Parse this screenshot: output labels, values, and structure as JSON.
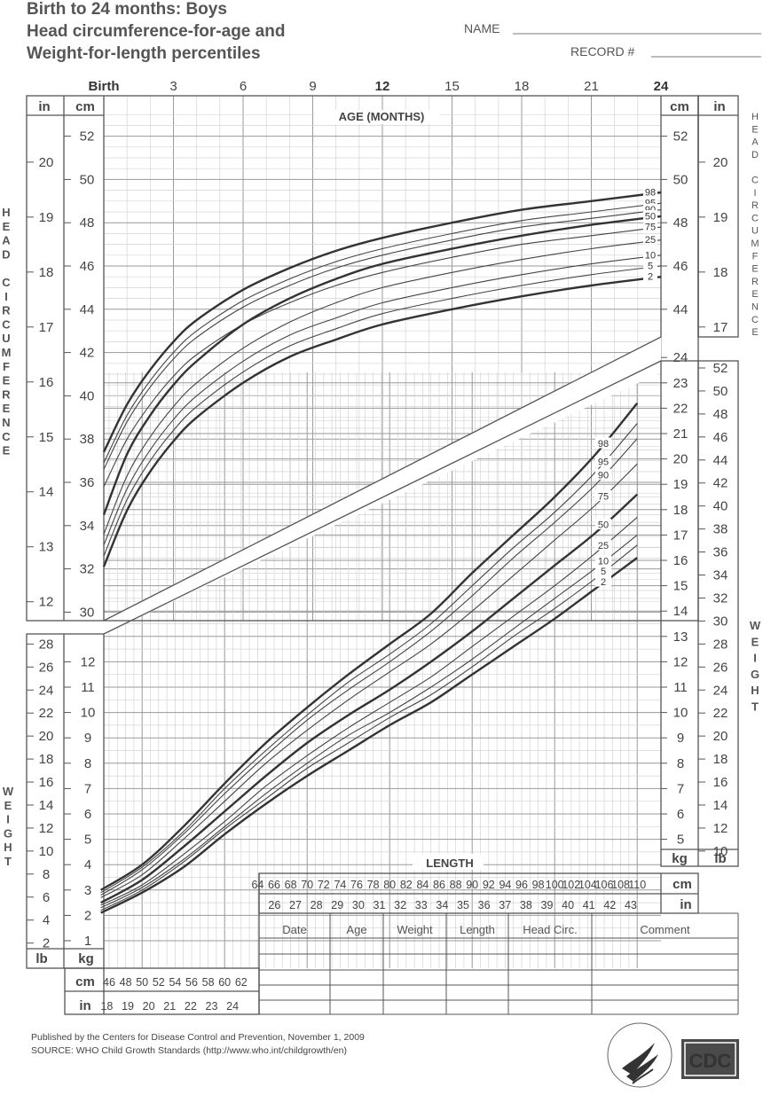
{
  "title": {
    "line1": "Birth to 24 months: Boys",
    "line2": "Head circumference-for-age and",
    "line3": "Weight-for-length percentiles"
  },
  "form": {
    "name_label": "NAME",
    "record_label": "RECORD #"
  },
  "age_axis": {
    "label": "AGE (MONTHS)",
    "ticks": [
      "Birth",
      "3",
      "6",
      "9",
      "12",
      "15",
      "18",
      "21",
      "24"
    ],
    "bold_ticks": [
      "Birth",
      "12",
      "24"
    ]
  },
  "head_axis": {
    "cm_label": "cm",
    "in_label": "in",
    "cm_ticks": [
      "52",
      "50",
      "48",
      "46",
      "44",
      "42",
      "40",
      "38",
      "36",
      "34",
      "32",
      "30"
    ],
    "in_ticks": [
      "20",
      "19",
      "18",
      "17",
      "16",
      "15",
      "14",
      "13",
      "12"
    ],
    "right_cm_ticks": [
      "52",
      "50",
      "48",
      "46",
      "44"
    ],
    "right_in_ticks": [
      "20",
      "19",
      "18",
      "17"
    ],
    "side_label": "HEAD CIRCUMFERENCE"
  },
  "weight_axis": {
    "kg_label": "kg",
    "lb_label": "lb",
    "left_kg_ticks": [
      "12",
      "11",
      "10",
      "9",
      "8",
      "7",
      "6",
      "5",
      "4",
      "3",
      "2",
      "1"
    ],
    "left_lb_ticks": [
      "28",
      "26",
      "24",
      "22",
      "20",
      "18",
      "16",
      "14",
      "12",
      "10",
      "8",
      "6",
      "4",
      "2"
    ],
    "right_kg_ticks": [
      "24",
      "23",
      "22",
      "21",
      "20",
      "19",
      "18",
      "17",
      "16",
      "15",
      "14",
      "13",
      "12",
      "11",
      "10",
      "9",
      "8",
      "7",
      "6",
      "5"
    ],
    "right_lb_ticks": [
      "52",
      "50",
      "48",
      "46",
      "44",
      "42",
      "40",
      "38",
      "36",
      "34",
      "32",
      "30",
      "28",
      "26",
      "24",
      "22",
      "20",
      "18",
      "16",
      "14",
      "12",
      "10"
    ],
    "side_label": "WEIGHT"
  },
  "length_axis": {
    "label": "LENGTH",
    "cm_label": "cm",
    "in_label": "in",
    "cm_ticks_left": [
      "46",
      "48",
      "50",
      "52",
      "54",
      "56",
      "58",
      "60",
      "62"
    ],
    "in_ticks_left": [
      "18",
      "19",
      "20",
      "21",
      "22",
      "23",
      "24"
    ],
    "cm_ticks_right": [
      "64",
      "66",
      "68",
      "70",
      "72",
      "74",
      "76",
      "78",
      "80",
      "82",
      "84",
      "86",
      "88",
      "90",
      "92",
      "94",
      "96",
      "98",
      "100",
      "102",
      "104",
      "106",
      "108",
      "110"
    ],
    "in_ticks_right": [
      "26",
      "27",
      "28",
      "29",
      "30",
      "31",
      "32",
      "33",
      "34",
      "35",
      "36",
      "37",
      "38",
      "39",
      "40",
      "41",
      "42",
      "43"
    ]
  },
  "percentile_labels": [
    "98",
    "95",
    "90",
    "75",
    "50",
    "25",
    "10",
    "5",
    "2"
  ],
  "record_table": {
    "columns": [
      "Date",
      "Age",
      "Weight",
      "Length",
      "Head Circ.",
      "Comment"
    ]
  },
  "footer": {
    "line1": "Published by the Centers for Disease Control and Prevention, November 1, 2009",
    "line2": "SOURCE:  WHO Child Growth Standards (http://www.who.int/childgrowth/en)"
  },
  "logos": {
    "hhs_seal_text": "DEPARTMENT OF HEALTH & HUMAN SERVICES USA",
    "cdc": "CDC"
  },
  "chart_data": [
    {
      "type": "line",
      "name": "Head circumference-for-age",
      "xlabel": "AGE (MONTHS)",
      "ylabel": "cm",
      "xlim": [
        0,
        24
      ],
      "ylim": [
        29,
        53
      ],
      "x": [
        0,
        1,
        2,
        3,
        4,
        6,
        8,
        10,
        12,
        15,
        18,
        21,
        24
      ],
      "series": [
        {
          "name": "98",
          "values": [
            37.4,
            39.6,
            41.2,
            42.5,
            43.5,
            44.9,
            45.9,
            46.7,
            47.3,
            48.0,
            48.6,
            49.0,
            49.4
          ]
        },
        {
          "name": "95",
          "values": [
            36.9,
            39.1,
            40.7,
            42.0,
            43.0,
            44.4,
            45.4,
            46.2,
            46.8,
            47.5,
            48.1,
            48.5,
            48.9
          ]
        },
        {
          "name": "90",
          "values": [
            36.6,
            38.8,
            40.4,
            41.7,
            42.7,
            44.1,
            45.1,
            45.9,
            46.5,
            47.2,
            47.8,
            48.2,
            48.6
          ]
        },
        {
          "name": "75",
          "values": [
            35.8,
            38.0,
            39.6,
            40.9,
            41.9,
            43.3,
            44.3,
            45.1,
            45.7,
            46.4,
            47.0,
            47.4,
            47.8
          ]
        },
        {
          "name": "50",
          "values": [
            34.5,
            37.3,
            39.1,
            40.5,
            41.6,
            43.3,
            44.5,
            45.4,
            46.1,
            46.8,
            47.4,
            47.9,
            48.3
          ]
        },
        {
          "name": "25",
          "values": [
            33.6,
            36.3,
            38.1,
            39.5,
            40.6,
            42.2,
            43.4,
            44.3,
            45.0,
            45.7,
            46.3,
            46.8,
            47.2
          ]
        },
        {
          "name": "10",
          "values": [
            33.1,
            35.7,
            37.5,
            38.9,
            40.0,
            41.6,
            42.8,
            43.6,
            44.3,
            45.0,
            45.6,
            46.1,
            46.5
          ]
        },
        {
          "name": "5",
          "values": [
            32.6,
            35.2,
            37.0,
            38.4,
            39.5,
            41.1,
            42.3,
            43.1,
            43.8,
            44.5,
            45.1,
            45.6,
            46.0
          ]
        },
        {
          "name": "2",
          "values": [
            32.1,
            34.7,
            36.5,
            37.9,
            39.0,
            40.6,
            41.8,
            42.6,
            43.3,
            44.0,
            44.6,
            45.1,
            45.5
          ]
        }
      ]
    },
    {
      "type": "line",
      "name": "Weight-for-length",
      "xlabel": "LENGTH",
      "ylabel": "kg",
      "xlim": [
        45,
        110
      ],
      "ylim": [
        0.5,
        24.5
      ],
      "x": [
        45,
        50,
        55,
        60,
        65,
        70,
        75,
        80,
        85,
        90,
        95,
        100,
        105,
        110
      ],
      "series": [
        {
          "name": "98",
          "values": [
            3.0,
            4.0,
            5.5,
            7.2,
            8.8,
            10.2,
            11.5,
            12.7,
            13.9,
            15.5,
            17.0,
            18.5,
            20.2,
            22.2
          ]
        },
        {
          "name": "95",
          "values": [
            2.9,
            3.9,
            5.3,
            7.0,
            8.5,
            9.9,
            11.2,
            12.3,
            13.5,
            15.0,
            16.5,
            17.9,
            19.5,
            21.4
          ]
        },
        {
          "name": "90",
          "values": [
            2.8,
            3.8,
            5.2,
            6.8,
            8.3,
            9.7,
            10.9,
            12.0,
            13.2,
            14.6,
            16.1,
            17.5,
            19.0,
            20.8
          ]
        },
        {
          "name": "75",
          "values": [
            2.7,
            3.6,
            5.0,
            6.5,
            8.0,
            9.3,
            10.5,
            11.6,
            12.7,
            14.0,
            15.4,
            16.8,
            18.2,
            19.8
          ]
        },
        {
          "name": "50",
          "values": [
            2.5,
            3.4,
            4.7,
            6.1,
            7.5,
            8.8,
            9.9,
            10.9,
            12.0,
            13.2,
            14.5,
            15.8,
            17.1,
            18.6
          ]
        },
        {
          "name": "25",
          "values": [
            2.4,
            3.2,
            4.4,
            5.7,
            7.1,
            8.3,
            9.4,
            10.4,
            11.4,
            12.6,
            13.8,
            15.0,
            16.3,
            17.7
          ]
        },
        {
          "name": "10",
          "values": [
            2.3,
            3.1,
            4.2,
            5.5,
            6.8,
            8.0,
            9.1,
            10.0,
            11.0,
            12.1,
            13.3,
            14.5,
            15.7,
            17.0
          ]
        },
        {
          "name": "5",
          "values": [
            2.2,
            3.0,
            4.1,
            5.4,
            6.6,
            7.8,
            8.8,
            9.8,
            10.7,
            11.8,
            13.0,
            14.1,
            15.3,
            16.6
          ]
        },
        {
          "name": "2",
          "values": [
            2.1,
            2.9,
            3.9,
            5.2,
            6.4,
            7.5,
            8.5,
            9.5,
            10.4,
            11.5,
            12.6,
            13.7,
            14.9,
            16.1
          ]
        }
      ]
    }
  ]
}
